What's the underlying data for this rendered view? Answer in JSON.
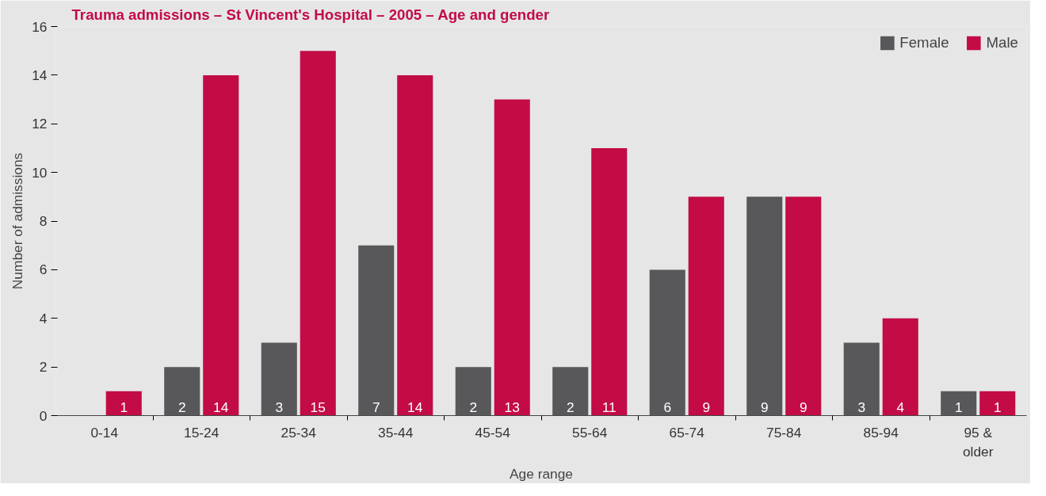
{
  "chart_data": {
    "type": "bar",
    "title": "Trauma admissions – St Vincent's Hospital – 2005 – Age and gender",
    "xlabel": "Age range",
    "ylabel": "Number of admissions",
    "categories": [
      "0-14",
      "15-24",
      "25-34",
      "35-44",
      "45-54",
      "55-64",
      "65-74",
      "75-84",
      "85-94",
      "95 &\nolder"
    ],
    "series": [
      {
        "name": "Female",
        "color": "#58585a",
        "values": [
          0,
          2,
          3,
          7,
          2,
          2,
          6,
          9,
          3,
          1
        ],
        "value_labels": [
          null,
          "2",
          "3",
          "7",
          "2",
          "2",
          "6",
          "9",
          "3",
          "1"
        ]
      },
      {
        "name": "Male",
        "color": "#c30b45",
        "values": [
          1,
          14,
          15,
          14,
          13,
          11,
          9,
          9,
          4,
          1
        ],
        "value_labels": [
          "1",
          "14",
          "15",
          "14",
          "13",
          "11",
          "9",
          "9",
          "4",
          "1"
        ]
      }
    ],
    "ylim": [
      0,
      16
    ],
    "yticks": [
      0,
      2,
      4,
      6,
      8,
      10,
      12,
      14,
      16
    ],
    "legend": "top right"
  }
}
